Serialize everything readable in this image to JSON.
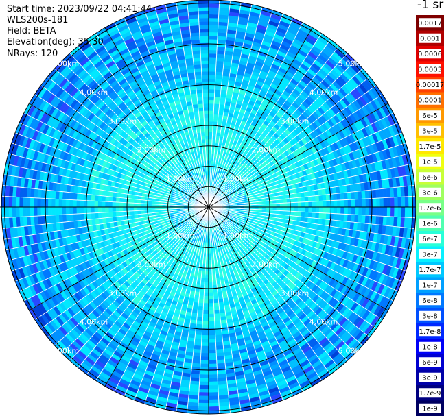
{
  "info": {
    "start_time": "Start time: 2023/09/22 04:41:44",
    "device": "WLS200s-181",
    "field": "Field: BETA",
    "elevation": "Elevation(deg): 35.30",
    "nrays": "NRays: 120"
  },
  "colorbar_title": "-1 sr",
  "chart_data": {
    "type": "heatmap",
    "subtype": "polar-ppi",
    "nrays": 120,
    "max_range_km": 5.3,
    "range_ring_labels": [
      "1.00km",
      "2.00km",
      "3.00km",
      "4.00km",
      "5.00km"
    ],
    "range_rings_km": [
      0.5,
      1.0,
      1.5,
      2.0,
      3.0,
      4.0,
      5.0
    ],
    "spokes_deg": [
      0,
      30,
      60,
      90,
      120,
      150,
      180,
      210,
      240,
      270,
      300,
      330
    ],
    "colorbar_ticks": [
      "0.0017",
      "0.001",
      "0.0006",
      "0.0003",
      "0.00017",
      "0.0001",
      "6e-5",
      "3e-5",
      "1.7e-5",
      "1e-5",
      "6e-6",
      "3e-6",
      "1.7e-6",
      "1e-6",
      "6e-7",
      "3e-7",
      "1.7e-7",
      "1e-7",
      "6e-8",
      "3e-8",
      "1.7e-8",
      "1e-8",
      "6e-9",
      "3e-9",
      "1.7e-9",
      "1e-9"
    ],
    "colorbar_colors": [
      "#800000",
      "#b00000",
      "#e00000",
      "#ff1000",
      "#ff4000",
      "#ff7000",
      "#ff9800",
      "#ffc000",
      "#ffe800",
      "#f0ff10",
      "#c8ff38",
      "#a0ff60",
      "#78ff88",
      "#50ffb0",
      "#28ffd8",
      "#08f0ff",
      "#00c8ff",
      "#00a0ff",
      "#0078ff",
      "#0050ff",
      "#0028ff",
      "#0000f8",
      "#0000d0",
      "#0000a8",
      "#000080",
      "#000060"
    ],
    "field": "BETA",
    "elevation_deg": 35.3,
    "dominant_value_range": [
      "3e-8",
      "1.7e-7"
    ]
  }
}
